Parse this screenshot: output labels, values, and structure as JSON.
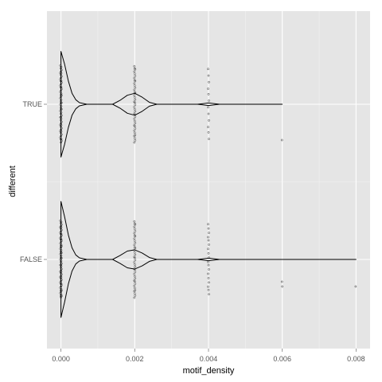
{
  "chart_data": {
    "type": "violin",
    "orientation": "horizontal",
    "xlabel": "motif_density",
    "ylabel": "different",
    "xlim": [
      -0.00038,
      0.00838
    ],
    "x_ticks": [
      0.0,
      0.002,
      0.004,
      0.006,
      0.008
    ],
    "x_tick_labels": [
      "0.000",
      "0.002",
      "0.004",
      "0.006",
      "0.008"
    ],
    "categories": [
      "FALSE",
      "TRUE"
    ],
    "grid": true,
    "legend": "none",
    "colors": {
      "panel_background": "#e5e5e5",
      "grid_major": "#ffffff",
      "grid_minor": "#f2f2f2",
      "violin_outline": "#000000",
      "points": "#000000"
    },
    "violins": [
      {
        "category": "TRUE",
        "x_range": [
          0.0,
          0.006
        ],
        "density_profile": [
          [
            0.0,
            0.82
          ],
          [
            0.0001,
            0.62
          ],
          [
            0.0002,
            0.36
          ],
          [
            0.0003,
            0.17
          ],
          [
            0.0004,
            0.07
          ],
          [
            0.0005,
            0.025
          ],
          [
            0.0007,
            0.0
          ],
          [
            0.0014,
            0.0
          ],
          [
            0.0016,
            0.06
          ],
          [
            0.0018,
            0.14
          ],
          [
            0.002,
            0.17
          ],
          [
            0.0022,
            0.11
          ],
          [
            0.0024,
            0.03
          ],
          [
            0.0026,
            0.0
          ],
          [
            0.0037,
            0.0
          ],
          [
            0.004,
            0.02
          ],
          [
            0.0043,
            0.0
          ],
          [
            0.006,
            0.0
          ]
        ],
        "points": [
          {
            "x": 0.0,
            "count": 60
          },
          {
            "x": 0.002,
            "count": 40
          },
          {
            "x": 0.004,
            "count": 12
          },
          {
            "x": 0.006,
            "count": 1
          }
        ]
      },
      {
        "category": "FALSE",
        "x_range": [
          0.0,
          0.008
        ],
        "density_profile": [
          [
            0.0,
            0.9
          ],
          [
            0.0001,
            0.66
          ],
          [
            0.0002,
            0.38
          ],
          [
            0.0003,
            0.18
          ],
          [
            0.0004,
            0.07
          ],
          [
            0.0005,
            0.025
          ],
          [
            0.0007,
            0.0
          ],
          [
            0.0014,
            0.0
          ],
          [
            0.0016,
            0.06
          ],
          [
            0.0018,
            0.13
          ],
          [
            0.002,
            0.15
          ],
          [
            0.0022,
            0.1
          ],
          [
            0.0024,
            0.03
          ],
          [
            0.0026,
            0.0
          ],
          [
            0.0037,
            0.0
          ],
          [
            0.004,
            0.02
          ],
          [
            0.0043,
            0.0
          ],
          [
            0.006,
            0.0
          ],
          [
            0.008,
            0.0
          ]
        ],
        "points": [
          {
            "x": 0.0,
            "count": 70
          },
          {
            "x": 0.002,
            "count": 40
          },
          {
            "x": 0.004,
            "count": 18
          },
          {
            "x": 0.006,
            "count": 2
          },
          {
            "x": 0.008,
            "count": 1
          }
        ]
      }
    ]
  }
}
